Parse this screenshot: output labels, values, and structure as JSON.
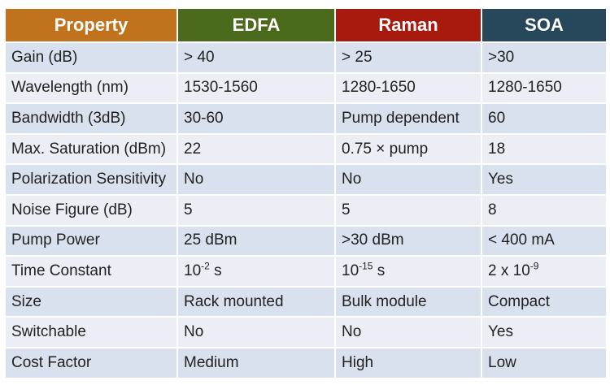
{
  "headers": [
    "Property",
    "EDFA",
    "Raman",
    "SOA"
  ],
  "header_colors": [
    "#c1721d",
    "#4b6a1c",
    "#a81a0e",
    "#26485a"
  ],
  "rows": [
    {
      "property": "Gain (dB)",
      "edfa": "> 40",
      "raman": "> 25",
      "soa": ">30"
    },
    {
      "property": "Wavelength (nm)",
      "edfa": "1530-1560",
      "raman": "1280-1650",
      "soa": "1280-1650"
    },
    {
      "property": "Bandwidth (3dB)",
      "edfa": "30-60",
      "raman": "Pump dependent",
      "soa": "60"
    },
    {
      "property": "Max. Saturation (dBm)",
      "edfa": "22",
      "raman": "0.75 × pump",
      "soa": "18"
    },
    {
      "property": "Polarization Sensitivity",
      "edfa": "No",
      "raman": "No",
      "soa": "Yes"
    },
    {
      "property": "Noise Figure (dB)",
      "edfa": "5",
      "raman": "5",
      "soa": "8"
    },
    {
      "property": "Pump Power",
      "edfa": "25 dBm",
      "raman": ">30 dBm",
      "soa": "< 400 mA"
    },
    {
      "property": "Time Constant",
      "edfa": {
        "base": "10",
        "exp": "-2",
        "unit": " s"
      },
      "raman": {
        "base": "10",
        "exp": "-15",
        "unit": " s"
      },
      "soa": {
        "base": "2 x 10",
        "exp": "-9",
        "unit": ""
      }
    },
    {
      "property": "Size",
      "edfa": "Rack mounted",
      "raman": "Bulk module",
      "soa": "Compact"
    },
    {
      "property": "Switchable",
      "edfa": "No",
      "raman": "No",
      "soa": "Yes"
    },
    {
      "property": "Cost Factor",
      "edfa": "Medium",
      "raman": "High",
      "soa": "Low"
    }
  ]
}
